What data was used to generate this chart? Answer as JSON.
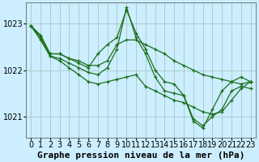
{
  "background_color": "#cceeff",
  "grid_color": "#aacccc",
  "line_color": "#1a6e1a",
  "xlabel": "Graphe pression niveau de la mer (hPa)",
  "xlabel_fontsize": 8,
  "tick_fontsize": 7,
  "yticks": [
    1021,
    1022,
    1023
  ],
  "ylim": [
    1020.55,
    1023.45
  ],
  "xlim": [
    -0.5,
    23.5
  ],
  "series": [
    [
      1022.95,
      1022.75,
      1022.35,
      1022.35,
      1022.25,
      1022.2,
      1022.1,
      1022.1,
      1022.2,
      1022.55,
      1022.65,
      1022.65,
      1022.55,
      1022.45,
      1022.35,
      1022.2,
      1022.1,
      1022.0,
      1021.9,
      1021.85,
      1021.8,
      1021.75,
      1021.7,
      1021.75
    ],
    [
      1022.95,
      1022.75,
      1022.35,
      1022.35,
      1022.25,
      1022.15,
      1022.05,
      1022.35,
      1022.55,
      1022.7,
      1023.3,
      1022.8,
      1022.45,
      1022.0,
      1021.75,
      1021.7,
      1021.45,
      1020.9,
      1020.75,
      1021.15,
      1021.55,
      1021.75,
      1021.85,
      1021.75
    ],
    [
      1022.95,
      1022.7,
      1022.3,
      1022.25,
      1022.15,
      1022.05,
      1021.95,
      1021.9,
      1022.05,
      1022.45,
      1023.35,
      1022.7,
      1022.35,
      1021.85,
      1021.55,
      1021.5,
      1021.45,
      1020.95,
      1020.8,
      1021.0,
      1021.15,
      1021.55,
      1021.65,
      1021.6
    ],
    [
      1022.95,
      1022.65,
      1022.3,
      1022.2,
      1022.05,
      1021.9,
      1021.75,
      1021.7,
      1021.75,
      1021.8,
      1021.85,
      1021.9,
      1021.65,
      1021.55,
      1021.45,
      1021.35,
      1021.3,
      1021.2,
      1021.1,
      1021.05,
      1021.1,
      1021.35,
      1021.6,
      1021.75
    ]
  ]
}
